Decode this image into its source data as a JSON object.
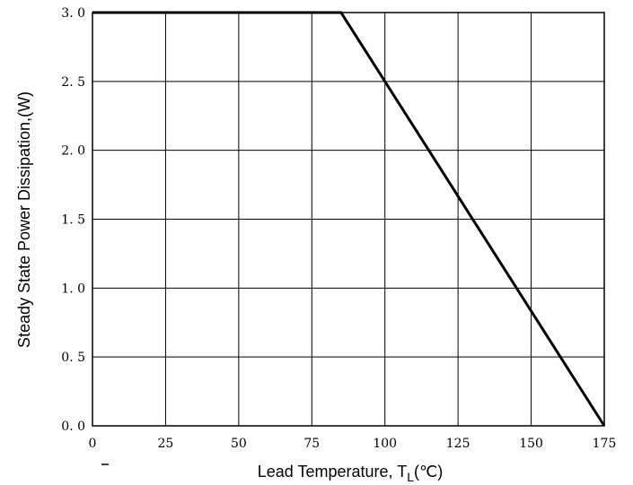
{
  "chart_data": {
    "type": "line",
    "xlabel_main": "Lead Temperature, T",
    "xlabel_sub": "L",
    "xlabel_unit": "(℃)",
    "ylabel": "Steady State Power Dissipation,(W)",
    "xlim": [
      0,
      175
    ],
    "ylim": [
      0,
      3.0
    ],
    "x_ticks": [
      "0",
      "25",
      "50",
      "75",
      "100",
      "125",
      "150",
      "175"
    ],
    "x_tick_values": [
      0,
      25,
      50,
      75,
      100,
      125,
      150,
      175
    ],
    "y_ticks": [
      "0. 0",
      "0. 5",
      "1. 0",
      "1. 5",
      "2. 0",
      "2. 5",
      "3. 0"
    ],
    "y_tick_values": [
      0,
      0.5,
      1.0,
      1.5,
      2.0,
      2.5,
      3.0
    ],
    "grid": true,
    "series": [
      {
        "x": [
          0,
          85,
          175
        ],
        "y": [
          3.0,
          3.0,
          0.0
        ]
      }
    ]
  }
}
